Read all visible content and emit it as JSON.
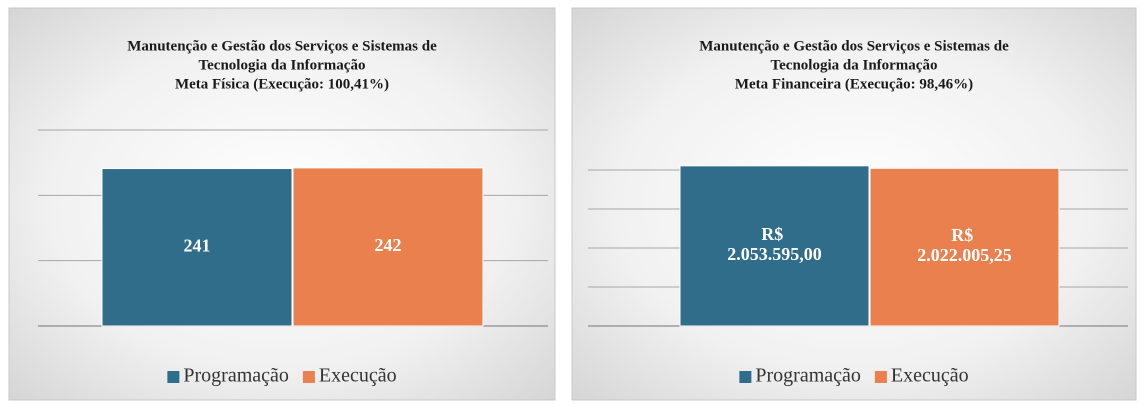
{
  "chart_data": [
    {
      "type": "bar",
      "title": [
        "Manutenção e Gestão dos Serviços e Sistemas de",
        "Tecnologia da Informação",
        "Meta Física (Execução: 100,41%)"
      ],
      "series": [
        {
          "name": "Programação",
          "color": "#2f6d8b",
          "values": [
            241
          ]
        },
        {
          "name": "Execução",
          "color": "#e9804d",
          "values": [
            242
          ]
        }
      ],
      "ylim": [
        0,
        300
      ],
      "yticks": [
        0,
        100,
        200,
        300
      ],
      "grid": true,
      "legend": "bottom"
    },
    {
      "type": "bar",
      "title": [
        "Manutenção e Gestão dos Serviços e Sistemas de",
        "Tecnologia da Informação",
        "Meta Financeira (Execução: 98,46%)"
      ],
      "series": [
        {
          "name": "Programação",
          "color": "#2f6d8b",
          "values": [
            2053595.0
          ],
          "value_labels": [
            "R$ 2.053.595,00"
          ]
        },
        {
          "name": "Execução",
          "color": "#e9804d",
          "values": [
            2022005.25
          ],
          "value_labels": [
            "R$ 2.022.005,25"
          ]
        }
      ],
      "ylim": [
        0,
        2500000
      ],
      "yticks": [
        0,
        500000,
        1000000,
        1500000,
        2000000
      ],
      "grid": true,
      "legend": "bottom"
    }
  ]
}
